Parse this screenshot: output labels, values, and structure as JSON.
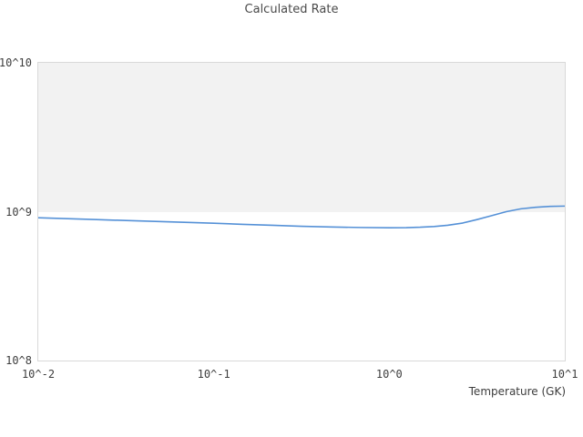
{
  "chart_data": {
    "type": "line",
    "title": "Calculated Rate",
    "xlabel": "Temperature (GK)",
    "ylabel": "",
    "xscale": "log",
    "yscale": "log",
    "xlim": [
      0.01,
      10
    ],
    "ylim": [
      100000000.0,
      10000000000.0
    ],
    "grid": false,
    "legend": false,
    "xtick_values": [
      0.01,
      0.1,
      1,
      10
    ],
    "xtick_labels": [
      "10^-2",
      "10^-1",
      "10^0",
      "10^1"
    ],
    "ytick_values": [
      10000000000.0,
      1000000000.0,
      100000000.0
    ],
    "ytick_labels": [
      "10^10",
      "10^9",
      "10^8"
    ],
    "x": [
      0.01,
      0.0147,
      0.0215,
      0.0316,
      0.0464,
      0.0681,
      0.1,
      0.147,
      0.215,
      0.316,
      0.464,
      0.681,
      1.0,
      1.25,
      1.5,
      1.8,
      2.15,
      2.61,
      3.16,
      3.83,
      4.64,
      5.62,
      6.81,
      8.25,
      10.0
    ],
    "series": [
      {
        "name": "calculated-rate",
        "values": [
          910000000.0,
          897000000.0,
          885000000.0,
          872000000.0,
          860000000.0,
          848000000.0,
          836000000.0,
          822000000.0,
          810000000.0,
          798000000.0,
          789000000.0,
          783000000.0,
          780000000.0,
          781000000.0,
          786000000.0,
          795000000.0,
          810000000.0,
          838000000.0,
          885000000.0,
          940000000.0,
          1000000000.0,
          1045000000.0,
          1070000000.0,
          1085000000.0,
          1090000000.0
        ]
      }
    ]
  },
  "colors": {
    "line": "#5591d7",
    "decade_band": "#f2f2f2",
    "plot_border": "#d9d9d9",
    "tick_text": "#3d3d3d",
    "title_text": "#4a4a4a",
    "plot_background": "#ffffff"
  }
}
